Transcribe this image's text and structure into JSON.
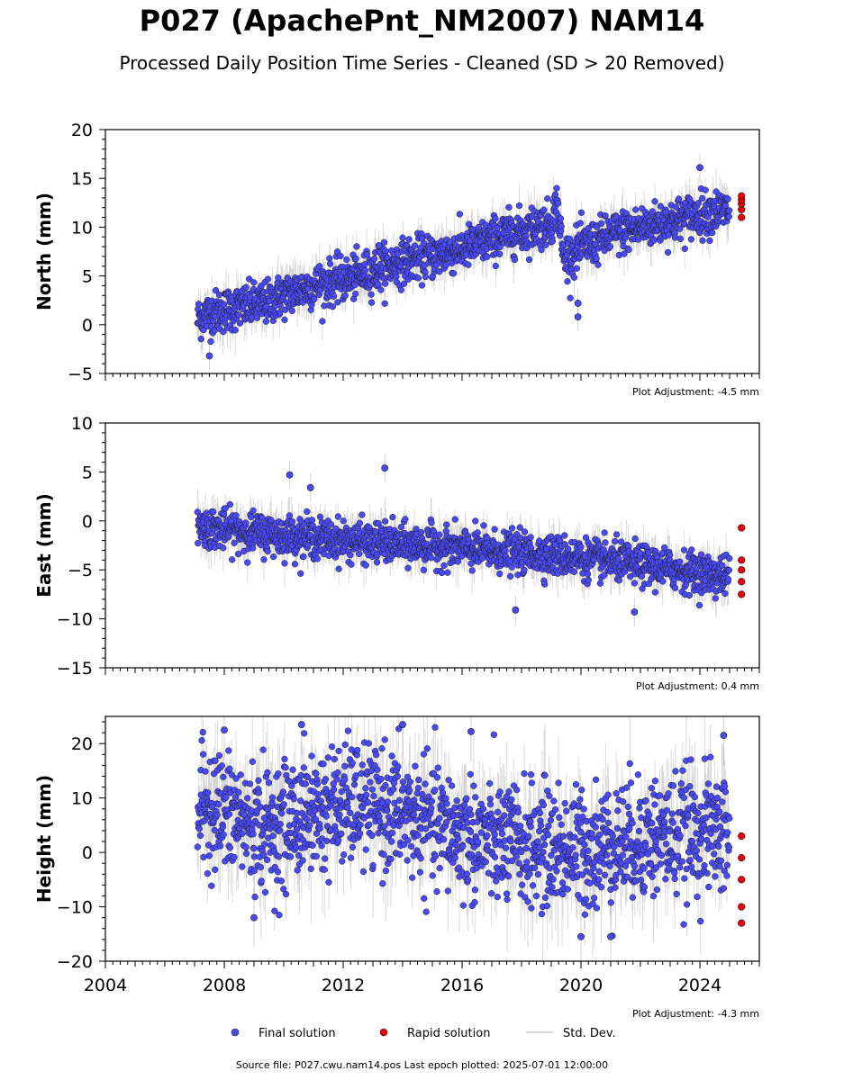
{
  "title": "P027 (ApachePnt_NM2007) NAM14",
  "subtitle": "Processed Daily Position Time Series - Cleaned (SD > 20 Removed)",
  "footer": "Source file: P027.cwu.nam14.pos  Last epoch plotted: 2025-07-01 12:00:00",
  "legend": {
    "final": "Final solution",
    "rapid": "Rapid solution",
    "std": "Std. Dev."
  },
  "colors": {
    "final": "#4a4af5",
    "rapid": "#e8000b",
    "std": "#9a9a9a",
    "marker_edge": "#1a1a1a"
  },
  "chart_data": [
    {
      "type": "scatter",
      "component": "north",
      "ylabel": "North (mm)",
      "ylim": [
        -5,
        20
      ],
      "yticks": [
        -5,
        0,
        5,
        10,
        15,
        20
      ],
      "xlim": [
        2004,
        2026
      ],
      "xticks": [
        2004,
        2008,
        2012,
        2016,
        2020,
        2024
      ],
      "adjustment": "Plot Adjustment: -4.5 mm",
      "series": [
        {
          "name": "Final solution",
          "style": "final",
          "x": [
            2007.1,
            2007.3,
            2007.6,
            2008.0,
            2008.5,
            2009.0,
            2009.5,
            2010.0,
            2010.5,
            2011.0,
            2011.5,
            2012.0,
            2012.5,
            2013.0,
            2013.5,
            2014.0,
            2014.5,
            2015.0,
            2015.5,
            2016.0,
            2016.5,
            2017.0,
            2017.5,
            2018.0,
            2018.5,
            2019.0,
            2019.2,
            2019.4,
            2019.7,
            2020.0,
            2020.5,
            2021.0,
            2021.5,
            2022.0,
            2022.5,
            2023.0,
            2023.5,
            2024.0,
            2024.5,
            2025.0
          ],
          "y": [
            0.5,
            1.0,
            1.2,
            1.5,
            1.8,
            2.0,
            2.3,
            3.0,
            3.5,
            4.0,
            4.3,
            4.6,
            5.0,
            5.5,
            6.0,
            6.5,
            6.8,
            7.0,
            7.4,
            7.8,
            8.2,
            8.8,
            9.3,
            9.6,
            10.0,
            10.4,
            12.5,
            7.0,
            7.2,
            8.0,
            8.5,
            9.2,
            9.6,
            10.0,
            10.3,
            10.6,
            11.0,
            11.3,
            11.6,
            11.8
          ]
        },
        {
          "name": "Rapid solution",
          "style": "rapid",
          "x": [
            2025.3,
            2025.35,
            2025.4,
            2025.45,
            2025.5
          ],
          "y": [
            11.0,
            11.8,
            12.4,
            12.8,
            13.2
          ]
        }
      ],
      "outliers": [
        {
          "x": 2013.2,
          "y": 8.1
        },
        {
          "x": 2024.0,
          "y": 16.1
        },
        {
          "x": 2019.9,
          "y": 2.2
        },
        {
          "x": 2019.9,
          "y": 0.8
        },
        {
          "x": 2007.5,
          "y": -3.2
        }
      ]
    },
    {
      "type": "scatter",
      "component": "east",
      "ylabel": "East (mm)",
      "ylim": [
        -15,
        10
      ],
      "yticks": [
        -15,
        -10,
        -5,
        0,
        5,
        10
      ],
      "xlim": [
        2004,
        2026
      ],
      "xticks": [
        2004,
        2008,
        2012,
        2016,
        2020,
        2024
      ],
      "adjustment": "Plot Adjustment: 0.4 mm",
      "series": [
        {
          "name": "Final solution",
          "style": "final",
          "x": [
            2007.1,
            2007.5,
            2008.0,
            2008.5,
            2009.0,
            2009.5,
            2010.0,
            2010.5,
            2011.0,
            2011.5,
            2012.0,
            2012.5,
            2013.0,
            2013.5,
            2014.0,
            2014.5,
            2015.0,
            2015.5,
            2016.0,
            2016.5,
            2017.0,
            2017.5,
            2018.0,
            2018.5,
            2019.0,
            2019.5,
            2020.0,
            2020.5,
            2021.0,
            2021.5,
            2022.0,
            2022.5,
            2023.0,
            2023.5,
            2024.0,
            2024.5,
            2025.0
          ],
          "y": [
            -0.5,
            -0.7,
            -0.9,
            -1.0,
            -1.2,
            -1.4,
            -1.5,
            -1.6,
            -1.7,
            -1.9,
            -2.0,
            -2.1,
            -2.2,
            -2.3,
            -2.4,
            -2.5,
            -2.6,
            -2.7,
            -2.8,
            -3.0,
            -3.1,
            -3.2,
            -3.3,
            -3.4,
            -3.5,
            -3.6,
            -3.8,
            -4.0,
            -4.1,
            -4.3,
            -4.5,
            -4.7,
            -4.9,
            -5.1,
            -5.3,
            -5.5,
            -5.6
          ]
        },
        {
          "name": "Rapid solution",
          "style": "rapid",
          "x": [
            2025.3,
            2025.35,
            2025.4,
            2025.45,
            2025.5
          ],
          "y": [
            -0.7,
            -4.0,
            -5.0,
            -6.2,
            -7.5
          ]
        }
      ],
      "outliers": [
        {
          "x": 2010.2,
          "y": 4.7
        },
        {
          "x": 2010.9,
          "y": 3.4
        },
        {
          "x": 2013.4,
          "y": 5.4
        },
        {
          "x": 2017.8,
          "y": -9.1
        },
        {
          "x": 2021.8,
          "y": -9.3
        }
      ]
    },
    {
      "type": "scatter",
      "component": "height",
      "ylabel": "Height (mm)",
      "ylim": [
        -20,
        25
      ],
      "yticks": [
        -20,
        -10,
        0,
        10,
        20
      ],
      "xlim": [
        2004,
        2026
      ],
      "xticks": [
        2004,
        2008,
        2012,
        2016,
        2020,
        2024
      ],
      "xticklabels": [
        "2004",
        "2008",
        "2012",
        "2016",
        "2020",
        "2024"
      ],
      "adjustment": "Plot Adjustment: -4.3 mm",
      "series": [
        {
          "name": "Final solution",
          "style": "final",
          "x": [
            2007.1,
            2007.5,
            2008.0,
            2008.5,
            2009.0,
            2009.5,
            2010.0,
            2010.5,
            2011.0,
            2011.5,
            2012.0,
            2012.5,
            2013.0,
            2013.5,
            2014.0,
            2014.5,
            2015.0,
            2015.5,
            2016.0,
            2016.5,
            2017.0,
            2017.5,
            2018.0,
            2018.5,
            2019.0,
            2019.5,
            2020.0,
            2020.5,
            2021.0,
            2021.5,
            2022.0,
            2022.5,
            2023.0,
            2023.5,
            2024.0,
            2024.5,
            2025.0
          ],
          "y": [
            8.0,
            9.0,
            7.0,
            6.0,
            5.0,
            4.0,
            5.5,
            6.5,
            7.5,
            8.0,
            8.5,
            9.0,
            8.5,
            8.0,
            7.0,
            6.0,
            5.0,
            4.0,
            3.0,
            2.5,
            2.0,
            1.5,
            1.5,
            1.0,
            1.0,
            0.5,
            0.5,
            1.0,
            1.5,
            2.0,
            2.5,
            3.0,
            3.0,
            3.5,
            3.5,
            4.0,
            3.5
          ]
        },
        {
          "name": "Rapid solution",
          "style": "rapid",
          "x": [
            2025.3,
            2025.35,
            2025.4,
            2025.45,
            2025.5
          ],
          "y": [
            3.0,
            -1.0,
            -5.0,
            -10.0,
            -13.0
          ]
        }
      ],
      "outliers": [
        {
          "x": 2008.0,
          "y": 22.5
        },
        {
          "x": 2010.6,
          "y": 23.5
        },
        {
          "x": 2014.0,
          "y": 23.5
        },
        {
          "x": 2016.3,
          "y": 22.2
        },
        {
          "x": 2024.8,
          "y": 21.5
        },
        {
          "x": 2009.0,
          "y": -12.0
        },
        {
          "x": 2021.0,
          "y": -15.5
        },
        {
          "x": 2020.0,
          "y": -15.5
        }
      ]
    }
  ]
}
